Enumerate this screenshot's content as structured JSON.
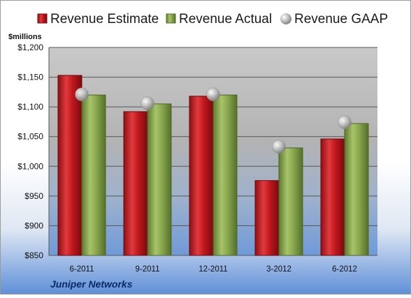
{
  "chart_data": {
    "type": "bar",
    "title": "",
    "ylabel": "$millions",
    "company": "Juniper Networks",
    "categories": [
      "6-2011",
      "9-2011",
      "12-2011",
      "3-2012",
      "6-2012"
    ],
    "ylim": [
      850,
      1200
    ],
    "ytick_step": 50,
    "ytick_labels": [
      "$850",
      "$900",
      "$950",
      "$1,000",
      "$1,050",
      "$1,100",
      "$1,150",
      "$1,200"
    ],
    "grid": true,
    "legend_position": "top",
    "series": [
      {
        "name": "Revenue Estimate",
        "kind": "bar",
        "color": "#c0181e",
        "values": [
          1153,
          1092,
          1118,
          976,
          1046
        ]
      },
      {
        "name": "Revenue Actual",
        "kind": "bar",
        "color": "#8aa84f",
        "values": [
          1120,
          1105,
          1120,
          1031,
          1072
        ]
      },
      {
        "name": "Revenue GAAP",
        "kind": "marker",
        "color": "#b8b8b8",
        "values": [
          1121,
          1106,
          1121,
          1033,
          1074
        ]
      }
    ]
  }
}
